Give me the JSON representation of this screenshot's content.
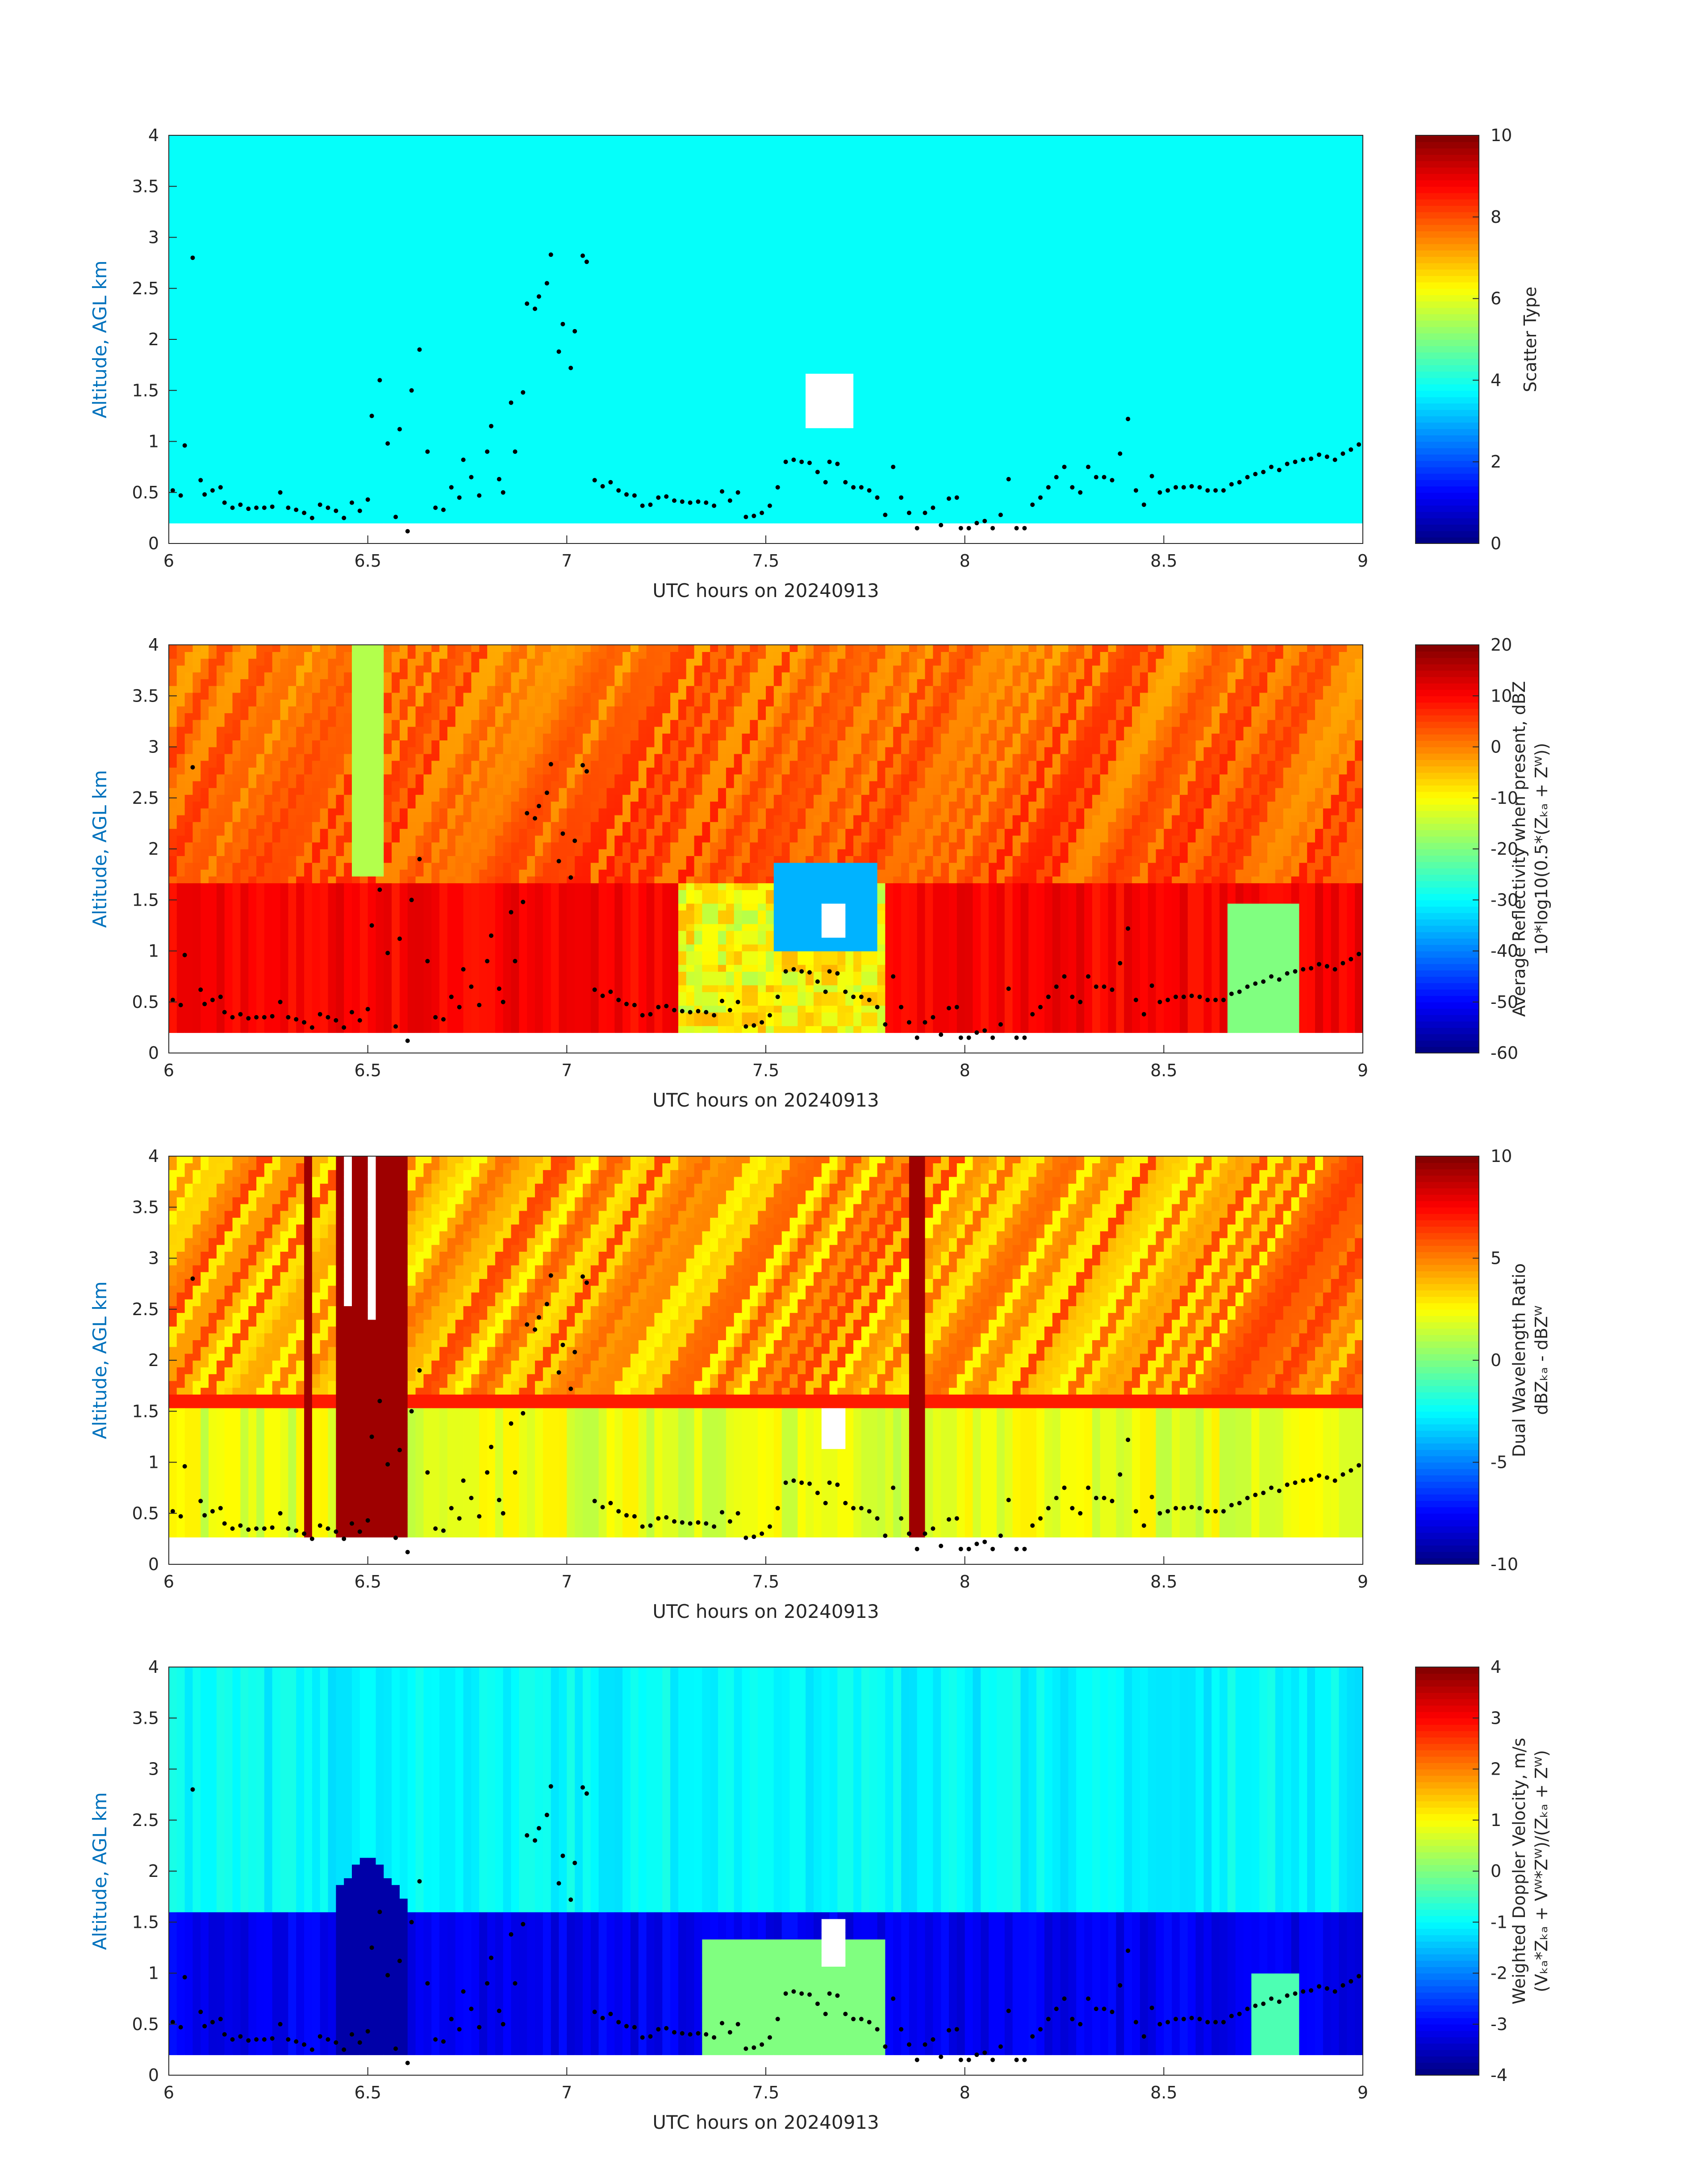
{
  "figure": {
    "xlabel": "UTC hours on 20240913",
    "ylabel": "Altitude, AGL km",
    "xticks": [
      "6",
      "6.5",
      "7",
      "7.5",
      "8",
      "8.5",
      "9"
    ],
    "yticks": [
      "0",
      "0.5",
      "1",
      "1.5",
      "2",
      "2.5",
      "3",
      "3.5",
      "4"
    ],
    "ylabel_color": "#0072BD"
  },
  "chart_data": [
    {
      "type": "heatmap",
      "panel": "scatter-type",
      "xlabel": "UTC hours on 20240913",
      "ylabel": "Altitude, AGL km",
      "xlim": [
        6,
        9
      ],
      "ylim": [
        0,
        4
      ],
      "colorbar": {
        "label_lines": [
          "Scatter Type"
        ],
        "range": [
          0,
          10
        ],
        "ticks": [
          "0",
          "2",
          "4",
          "6",
          "8",
          "10"
        ]
      },
      "dominant_value": 3.5,
      "data_bottom_km": 0.2,
      "cloud_base_dots": true
    },
    {
      "type": "heatmap",
      "panel": "average-reflectivity",
      "xlabel": "UTC hours on 20240913",
      "ylabel": "Altitude, AGL km",
      "xlim": [
        6,
        9
      ],
      "ylim": [
        0,
        4
      ],
      "colorbar": {
        "label_lines": [
          "Average Reflectivity when present, dBZ",
          "10*log10(0.5*(Zₖₐ + Zᵂ))"
        ],
        "range": [
          -60,
          20
        ],
        "ticks": [
          "-60",
          "-50",
          "-40",
          "-30",
          "-20",
          "-10",
          "0",
          "10",
          "20"
        ]
      },
      "data_bottom_km": 0.2,
      "cloud_base_dots": true
    },
    {
      "type": "heatmap",
      "panel": "dual-wavelength-ratio",
      "xlabel": "UTC hours on 20240913",
      "ylabel": "Altitude, AGL km",
      "xlim": [
        6,
        9
      ],
      "ylim": [
        0,
        4
      ],
      "colorbar": {
        "label_lines": [
          "Dual Wavelength Ratio",
          "dBZₖₐ - dBZᵂ"
        ],
        "range": [
          -10,
          10
        ],
        "ticks": [
          "-10",
          "-5",
          "0",
          "5",
          "10"
        ]
      },
      "data_bottom_km": 0.27,
      "cloud_base_dots": true
    },
    {
      "type": "heatmap",
      "panel": "weighted-doppler-velocity",
      "xlabel": "UTC hours on 20240913",
      "ylabel": "Altitude, AGL km",
      "xlim": [
        6,
        9
      ],
      "ylim": [
        0,
        4
      ],
      "colorbar": {
        "label_lines": [
          "Weighted Doppler Velocity, m/s",
          "(Vₖₐ*Zₖₐ + Vᵂ*Zᵂ)/(Zₖₐ + Zᵂ)"
        ],
        "range": [
          -4,
          4
        ],
        "ticks": [
          "-4",
          "-3",
          "-2",
          "-1",
          "0",
          "1",
          "2",
          "3",
          "4"
        ]
      },
      "data_bottom_km": 0.2,
      "cloud_base_dots": true
    }
  ],
  "cloud_base": [
    [
      6.01,
      0.52
    ],
    [
      6.03,
      0.47
    ],
    [
      6.04,
      0.96
    ],
    [
      6.06,
      2.8
    ],
    [
      6.08,
      0.62
    ],
    [
      6.09,
      0.48
    ],
    [
      6.11,
      0.52
    ],
    [
      6.13,
      0.55
    ],
    [
      6.14,
      0.4
    ],
    [
      6.16,
      0.35
    ],
    [
      6.18,
      0.38
    ],
    [
      6.2,
      0.34
    ],
    [
      6.22,
      0.35
    ],
    [
      6.24,
      0.35
    ],
    [
      6.26,
      0.36
    ],
    [
      6.28,
      0.5
    ],
    [
      6.3,
      0.35
    ],
    [
      6.32,
      0.33
    ],
    [
      6.34,
      0.3
    ],
    [
      6.36,
      0.25
    ],
    [
      6.38,
      0.38
    ],
    [
      6.4,
      0.35
    ],
    [
      6.42,
      0.32
    ],
    [
      6.44,
      0.25
    ],
    [
      6.46,
      0.4
    ],
    [
      6.48,
      0.32
    ],
    [
      6.5,
      0.43
    ],
    [
      6.51,
      1.25
    ],
    [
      6.53,
      1.6
    ],
    [
      6.55,
      0.98
    ],
    [
      6.57,
      0.26
    ],
    [
      6.58,
      1.12
    ],
    [
      6.6,
      0.12
    ],
    [
      6.61,
      1.5
    ],
    [
      6.63,
      1.9
    ],
    [
      6.65,
      0.9
    ],
    [
      6.67,
      0.35
    ],
    [
      6.69,
      0.33
    ],
    [
      6.71,
      0.55
    ],
    [
      6.73,
      0.45
    ],
    [
      6.74,
      0.82
    ],
    [
      6.76,
      0.65
    ],
    [
      6.78,
      0.47
    ],
    [
      6.8,
      0.9
    ],
    [
      6.81,
      1.15
    ],
    [
      6.83,
      0.63
    ],
    [
      6.84,
      0.5
    ],
    [
      6.86,
      1.38
    ],
    [
      6.87,
      0.9
    ],
    [
      6.89,
      1.48
    ],
    [
      6.9,
      2.35
    ],
    [
      6.92,
      2.3
    ],
    [
      6.93,
      2.42
    ],
    [
      6.95,
      2.55
    ],
    [
      6.96,
      2.83
    ],
    [
      6.98,
      1.88
    ],
    [
      6.99,
      2.15
    ],
    [
      7.01,
      1.72
    ],
    [
      7.02,
      2.08
    ],
    [
      7.04,
      2.82
    ],
    [
      7.05,
      2.76
    ],
    [
      7.07,
      0.62
    ],
    [
      7.09,
      0.56
    ],
    [
      7.11,
      0.6
    ],
    [
      7.13,
      0.52
    ],
    [
      7.15,
      0.48
    ],
    [
      7.17,
      0.47
    ],
    [
      7.19,
      0.37
    ],
    [
      7.21,
      0.38
    ],
    [
      7.23,
      0.45
    ],
    [
      7.25,
      0.46
    ],
    [
      7.27,
      0.42
    ],
    [
      7.29,
      0.41
    ],
    [
      7.31,
      0.4
    ],
    [
      7.33,
      0.41
    ],
    [
      7.35,
      0.4
    ],
    [
      7.37,
      0.37
    ],
    [
      7.39,
      0.51
    ],
    [
      7.41,
      0.42
    ],
    [
      7.43,
      0.5
    ],
    [
      7.45,
      0.26
    ],
    [
      7.47,
      0.27
    ],
    [
      7.49,
      0.3
    ],
    [
      7.51,
      0.37
    ],
    [
      7.53,
      0.55
    ],
    [
      7.55,
      0.8
    ],
    [
      7.57,
      0.82
    ],
    [
      7.59,
      0.8
    ],
    [
      7.61,
      0.79
    ],
    [
      7.63,
      0.7
    ],
    [
      7.65,
      0.6
    ],
    [
      7.66,
      0.8
    ],
    [
      7.68,
      0.78
    ],
    [
      7.7,
      0.6
    ],
    [
      7.72,
      0.55
    ],
    [
      7.74,
      0.55
    ],
    [
      7.76,
      0.52
    ],
    [
      7.78,
      0.45
    ],
    [
      7.8,
      0.28
    ],
    [
      7.82,
      0.75
    ],
    [
      7.84,
      0.45
    ],
    [
      7.86,
      0.3
    ],
    [
      7.88,
      0.15
    ],
    [
      7.9,
      0.3
    ],
    [
      7.92,
      0.35
    ],
    [
      7.94,
      0.18
    ],
    [
      7.96,
      0.44
    ],
    [
      7.98,
      0.45
    ],
    [
      7.99,
      0.15
    ],
    [
      8.01,
      0.15
    ],
    [
      8.03,
      0.2
    ],
    [
      8.05,
      0.22
    ],
    [
      8.07,
      0.15
    ],
    [
      8.09,
      0.28
    ],
    [
      8.11,
      0.63
    ],
    [
      8.13,
      0.15
    ],
    [
      8.15,
      0.15
    ],
    [
      8.17,
      0.38
    ],
    [
      8.19,
      0.45
    ],
    [
      8.21,
      0.55
    ],
    [
      8.23,
      0.65
    ],
    [
      8.25,
      0.75
    ],
    [
      8.27,
      0.55
    ],
    [
      8.29,
      0.5
    ],
    [
      8.31,
      0.75
    ],
    [
      8.33,
      0.65
    ],
    [
      8.35,
      0.65
    ],
    [
      8.37,
      0.62
    ],
    [
      8.39,
      0.88
    ],
    [
      8.41,
      1.22
    ],
    [
      8.43,
      0.52
    ],
    [
      8.45,
      0.38
    ],
    [
      8.47,
      0.66
    ],
    [
      8.49,
      0.5
    ],
    [
      8.51,
      0.52
    ],
    [
      8.53,
      0.55
    ],
    [
      8.55,
      0.55
    ],
    [
      8.57,
      0.56
    ],
    [
      8.59,
      0.55
    ],
    [
      8.61,
      0.52
    ],
    [
      8.63,
      0.52
    ],
    [
      8.65,
      0.52
    ],
    [
      8.67,
      0.58
    ],
    [
      8.69,
      0.6
    ],
    [
      8.71,
      0.65
    ],
    [
      8.73,
      0.68
    ],
    [
      8.75,
      0.7
    ],
    [
      8.77,
      0.75
    ],
    [
      8.79,
      0.72
    ],
    [
      8.81,
      0.78
    ],
    [
      8.83,
      0.8
    ],
    [
      8.85,
      0.82
    ],
    [
      8.87,
      0.83
    ],
    [
      8.89,
      0.87
    ],
    [
      8.91,
      0.85
    ],
    [
      8.93,
      0.82
    ],
    [
      8.95,
      0.88
    ],
    [
      8.97,
      0.92
    ],
    [
      8.99,
      0.97
    ]
  ],
  "colors": {
    "axis_text": "#262626",
    "ylabel": "#0072BD",
    "dots": "#000000",
    "missing": "#ffffff"
  },
  "colormap": "jet"
}
